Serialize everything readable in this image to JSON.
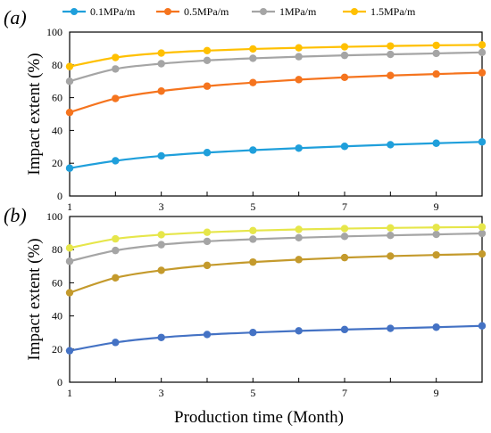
{
  "chart_data": {
    "type": "line",
    "xlabel": "Production time (Month)",
    "ylabel": "Impact extent (%)",
    "xlim": [
      1,
      10
    ],
    "ylim": [
      0,
      100
    ],
    "xticks": [
      1,
      3,
      5,
      7,
      9
    ],
    "yticks": [
      0,
      20,
      40,
      60,
      80,
      100
    ],
    "legend": {
      "position": "top",
      "entries": [
        "0.1MPa/m",
        "0.5MPa/m",
        "1MPa/m",
        "1.5MPa/m"
      ]
    },
    "colors": [
      "#1f9fdb",
      "#f5741e",
      "#a5a5a5",
      "#ffc000"
    ],
    "x": [
      1,
      2,
      3,
      4,
      5,
      6,
      7,
      8,
      9,
      10
    ],
    "panels": [
      {
        "label": "(a)",
        "series": [
          {
            "name": "0.1MPa/m",
            "color": "#1f9fdb",
            "values": [
              17,
              21.5,
              24.5,
              26.5,
              28,
              29.2,
              30.3,
              31.3,
              32.2,
              33
            ]
          },
          {
            "name": "0.5MPa/m",
            "color": "#f5741e",
            "values": [
              51,
              59.5,
              64,
              67,
              69.2,
              71,
              72.4,
              73.5,
              74.4,
              75.2
            ]
          },
          {
            "name": "1MPa/m",
            "color": "#a5a5a5",
            "values": [
              70,
              77.5,
              80.7,
              82.7,
              84,
              85,
              85.8,
              86.4,
              87,
              87.6
            ]
          },
          {
            "name": "1.5MPa/m",
            "color": "#ffc000",
            "values": [
              79,
              84.5,
              87.2,
              88.7,
              89.7,
              90.4,
              91,
              91.5,
              91.9,
              92.2
            ]
          }
        ]
      },
      {
        "label": "(b)",
        "series": [
          {
            "name": "0.1MPa/m",
            "color": "#4472c4",
            "values": [
              19,
              24,
              27,
              28.8,
              30,
              31,
              31.8,
              32.5,
              33.2,
              34
            ]
          },
          {
            "name": "0.5MPa/m",
            "color": "#c49a2c",
            "values": [
              54,
              63,
              67.5,
              70.5,
              72.5,
              74,
              75.2,
              76.1,
              76.8,
              77.4
            ]
          },
          {
            "name": "1MPa/m",
            "color": "#a5a5a5",
            "values": [
              73,
              79.5,
              83,
              85,
              86.3,
              87.2,
              88,
              88.6,
              89.2,
              89.8
            ]
          },
          {
            "name": "1.5MPa/m",
            "color": "#e6e64a",
            "values": [
              81,
              86.5,
              89,
              90.5,
              91.5,
              92.2,
              92.7,
              93.1,
              93.4,
              93.7
            ]
          }
        ]
      }
    ]
  }
}
